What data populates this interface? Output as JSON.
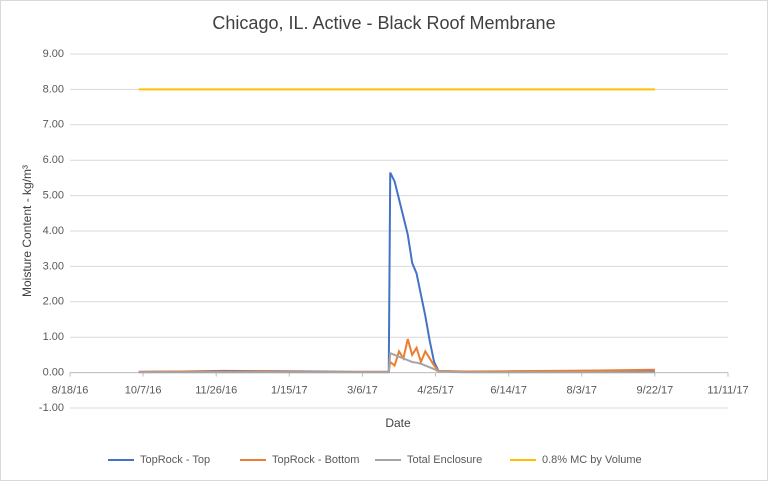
{
  "chart_data": {
    "type": "line",
    "title": "Chicago, IL.  Active - Black Roof Membrane",
    "x_label": "Date",
    "y_label": "Moisture Content - kg/m³",
    "x": [
      "2016-10-04",
      "2016-11-01",
      "2016-12-01",
      "2017-01-01",
      "2017-02-01",
      "2017-03-01",
      "2017-03-24",
      "2017-03-25",
      "2017-03-28",
      "2017-03-31",
      "2017-04-03",
      "2017-04-06",
      "2017-04-09",
      "2017-04-12",
      "2017-04-15",
      "2017-04-18",
      "2017-04-21",
      "2017-04-24",
      "2017-04-27",
      "2017-05-15",
      "2017-06-15",
      "2017-07-15",
      "2017-08-15",
      "2017-09-22"
    ],
    "series": [
      {
        "name": "TopRock - Top",
        "color": "#4472c4",
        "values": [
          0.02,
          0.03,
          0.05,
          0.04,
          0.03,
          0.02,
          0.02,
          5.65,
          5.4,
          4.9,
          4.4,
          3.9,
          3.1,
          2.8,
          2.2,
          1.6,
          0.9,
          0.3,
          0.05,
          0.02,
          0.02,
          0.02,
          0.03,
          0.03
        ]
      },
      {
        "name": "TopRock - Bottom",
        "color": "#ed7d31",
        "values": [
          0.02,
          0.03,
          0.03,
          0.03,
          0.02,
          0.02,
          0.02,
          0.3,
          0.2,
          0.6,
          0.4,
          0.95,
          0.5,
          0.7,
          0.3,
          0.6,
          0.4,
          0.2,
          0.05,
          0.03,
          0.04,
          0.05,
          0.06,
          0.08
        ]
      },
      {
        "name": "Total Enclosure",
        "color": "#a5a5a5",
        "values": [
          0.01,
          0.01,
          0.01,
          0.01,
          0.01,
          0.01,
          0.01,
          0.55,
          0.5,
          0.45,
          0.4,
          0.35,
          0.3,
          0.28,
          0.25,
          0.2,
          0.15,
          0.1,
          0.03,
          0.01,
          0.01,
          0.01,
          0.01,
          0.01
        ]
      },
      {
        "name": "0.8% MC by Volume",
        "color": "#ffc000",
        "values": [
          8,
          8,
          8,
          8,
          8,
          8,
          8,
          8,
          8,
          8,
          8,
          8,
          8,
          8,
          8,
          8,
          8,
          8,
          8,
          8,
          8,
          8,
          8,
          8
        ]
      }
    ],
    "xlim": [
      "2016-08-18",
      "2017-11-11"
    ],
    "xticks": [
      {
        "value": "2016-08-18",
        "label": "8/18/16"
      },
      {
        "value": "2016-10-07",
        "label": "10/7/16"
      },
      {
        "value": "2016-11-26",
        "label": "11/26/16"
      },
      {
        "value": "2017-01-15",
        "label": "1/15/17"
      },
      {
        "value": "2017-03-06",
        "label": "3/6/17"
      },
      {
        "value": "2017-04-25",
        "label": "4/25/17"
      },
      {
        "value": "2017-06-14",
        "label": "6/14/17"
      },
      {
        "value": "2017-08-03",
        "label": "8/3/17"
      },
      {
        "value": "2017-09-22",
        "label": "9/22/17"
      },
      {
        "value": "2017-11-11",
        "label": "11/11/17"
      }
    ],
    "ylim": [
      -1,
      9
    ],
    "yticks": [
      {
        "value": -1,
        "label": "-1.00"
      },
      {
        "value": 0,
        "label": "0.00"
      },
      {
        "value": 1,
        "label": "1.00"
      },
      {
        "value": 2,
        "label": "2.00"
      },
      {
        "value": 3,
        "label": "3.00"
      },
      {
        "value": 4,
        "label": "4.00"
      },
      {
        "value": 5,
        "label": "5.00"
      },
      {
        "value": 6,
        "label": "6.00"
      },
      {
        "value": 7,
        "label": "7.00"
      },
      {
        "value": 8,
        "label": "8.00"
      },
      {
        "value": 9,
        "label": "9.00"
      }
    ],
    "grid": true,
    "legend": "bottom"
  }
}
